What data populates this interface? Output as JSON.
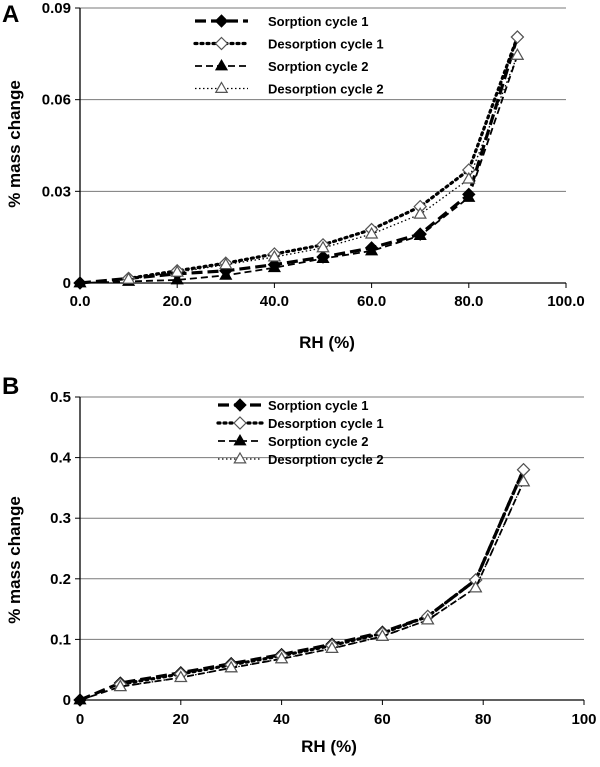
{
  "chart_data": [
    {
      "panel": "A",
      "type": "line",
      "xlabel": "RH (%)",
      "ylabel": "% mass change",
      "xlim": [
        0,
        100
      ],
      "ylim": [
        0,
        0.09
      ],
      "xticks": [
        "0.0",
        "20.0",
        "40.0",
        "60.0",
        "80.0",
        "100.0"
      ],
      "yticks": [
        "0",
        "0.03",
        "0.06",
        "0.09"
      ],
      "grid": "horizontal",
      "legend": "top-center",
      "series": [
        {
          "name": "Sorption cycle 1",
          "marker": "diamond-filled",
          "line": "long-dash",
          "x": [
            0,
            10,
            20,
            30,
            40,
            50,
            60,
            70,
            80,
            90
          ],
          "y": [
            0,
            0.0015,
            0.003,
            0.004,
            0.006,
            0.0085,
            0.0115,
            0.016,
            0.029,
            0.0805
          ]
        },
        {
          "name": "Desorption cycle 1",
          "marker": "diamond-open",
          "line": "dotted",
          "x": [
            90,
            80,
            70,
            60,
            50,
            40,
            30,
            20,
            10
          ],
          "y": [
            0.0805,
            0.037,
            0.025,
            0.0175,
            0.0125,
            0.0095,
            0.0065,
            0.004,
            0.0015
          ]
        },
        {
          "name": "Sorption cycle 2",
          "marker": "triangle-filled",
          "line": "dash",
          "x": [
            0,
            10,
            20,
            30,
            40,
            50,
            60,
            70,
            80,
            90
          ],
          "y": [
            0,
            0.0005,
            0.001,
            0.0025,
            0.005,
            0.008,
            0.0105,
            0.0155,
            0.028,
            0.0745
          ]
        },
        {
          "name": "Desorption cycle 2",
          "marker": "triangle-open",
          "line": "fine-dot",
          "x": [
            90,
            80,
            70,
            60,
            50,
            40,
            30,
            20,
            10
          ],
          "y": [
            0.0745,
            0.034,
            0.0225,
            0.016,
            0.0115,
            0.0085,
            0.006,
            0.0035,
            0.0012
          ]
        }
      ]
    },
    {
      "panel": "B",
      "type": "line",
      "xlabel": "RH (%)",
      "ylabel": "% mass change",
      "xlim": [
        0,
        100
      ],
      "ylim": [
        0,
        0.5
      ],
      "xticks": [
        "0",
        "20",
        "40",
        "60",
        "80",
        "100"
      ],
      "yticks": [
        "0",
        "0.1",
        "0.2",
        "0.3",
        "0.4",
        "0.5"
      ],
      "grid": "horizontal",
      "legend": "top-center",
      "series": [
        {
          "name": "Sorption cycle 1",
          "marker": "diamond-filled",
          "line": "long-dash",
          "x": [
            0,
            8,
            20,
            30,
            40,
            50,
            60,
            69,
            78.5,
            88
          ],
          "y": [
            0,
            0.028,
            0.045,
            0.06,
            0.075,
            0.092,
            0.112,
            0.138,
            0.198,
            0.38
          ]
        },
        {
          "name": "Desorption cycle 1",
          "marker": "diamond-open",
          "line": "dotted",
          "x": [
            88,
            78.5,
            69,
            60,
            50,
            40,
            30,
            20,
            8
          ],
          "y": [
            0.38,
            0.198,
            0.138,
            0.11,
            0.09,
            0.073,
            0.058,
            0.043,
            0.026
          ]
        },
        {
          "name": "Sorption cycle 2",
          "marker": "triangle-filled",
          "line": "dash",
          "x": [
            0,
            8,
            20,
            30,
            40,
            50,
            60,
            69,
            78.5,
            88
          ],
          "y": [
            0,
            0.022,
            0.037,
            0.053,
            0.068,
            0.085,
            0.105,
            0.132,
            0.185,
            0.36
          ]
        },
        {
          "name": "Desorption cycle 2",
          "marker": "triangle-open",
          "line": "fine-dot",
          "x": [
            88,
            78.5,
            69,
            60,
            50,
            40,
            30,
            20,
            8
          ],
          "y": [
            0.36,
            0.185,
            0.132,
            0.105,
            0.085,
            0.068,
            0.053,
            0.037,
            0.022
          ]
        }
      ]
    }
  ]
}
